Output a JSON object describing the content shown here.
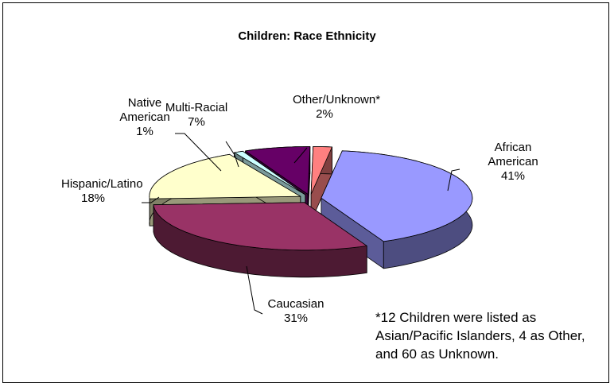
{
  "chart_data": {
    "type": "pie3d",
    "title": "Children: Race Ethnicity",
    "categories": [
      "African American",
      "Caucasian",
      "Hispanic/Latino",
      "Native American",
      "Multi-Racial",
      "Other/Unknown*"
    ],
    "values": [
      41,
      31,
      18,
      1,
      7,
      2
    ],
    "value_labels": [
      "41%",
      "31%",
      "18%",
      "1%",
      "7%",
      "2%"
    ],
    "colors": [
      "#9999ff",
      "#993366",
      "#ffffcc",
      "#ccffff",
      "#660066",
      "#ff8080"
    ],
    "annotation": "*12 Children were listed as Asian/Pacific Islanders, 4 as Other, and 60 as Unknown."
  }
}
